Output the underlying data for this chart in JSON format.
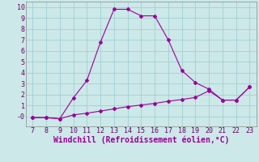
{
  "x": [
    7,
    8,
    9,
    10,
    11,
    12,
    13,
    14,
    15,
    16,
    17,
    18,
    19,
    20,
    21,
    22,
    23
  ],
  "y_main": [
    -0.1,
    -0.1,
    -0.2,
    1.7,
    3.3,
    6.8,
    9.8,
    9.8,
    9.2,
    9.2,
    7.0,
    4.2,
    3.1,
    2.5,
    1.5,
    1.5,
    2.7
  ],
  "y_flat": [
    -0.1,
    -0.1,
    -0.2,
    0.15,
    0.3,
    0.5,
    0.7,
    0.9,
    1.05,
    1.2,
    1.4,
    1.55,
    1.75,
    2.35,
    1.5,
    1.5,
    2.7
  ],
  "line_color": "#990099",
  "bg_color": "#cce8e8",
  "grid_color": "#99cccc",
  "xlabel": "Windchill (Refroidissement éolien,°C)",
  "xlim": [
    6.5,
    23.5
  ],
  "ylim": [
    -0.9,
    10.5
  ],
  "xticks": [
    7,
    8,
    9,
    10,
    11,
    12,
    13,
    14,
    15,
    16,
    17,
    18,
    19,
    20,
    21,
    22,
    23
  ],
  "yticks": [
    0,
    1,
    2,
    3,
    4,
    5,
    6,
    7,
    8,
    9,
    10
  ],
  "ytick_labels": [
    "-0",
    "1",
    "2",
    "3",
    "4",
    "5",
    "6",
    "7",
    "8",
    "9",
    "10"
  ],
  "tick_font_size": 6,
  "xlabel_fontsize": 7
}
